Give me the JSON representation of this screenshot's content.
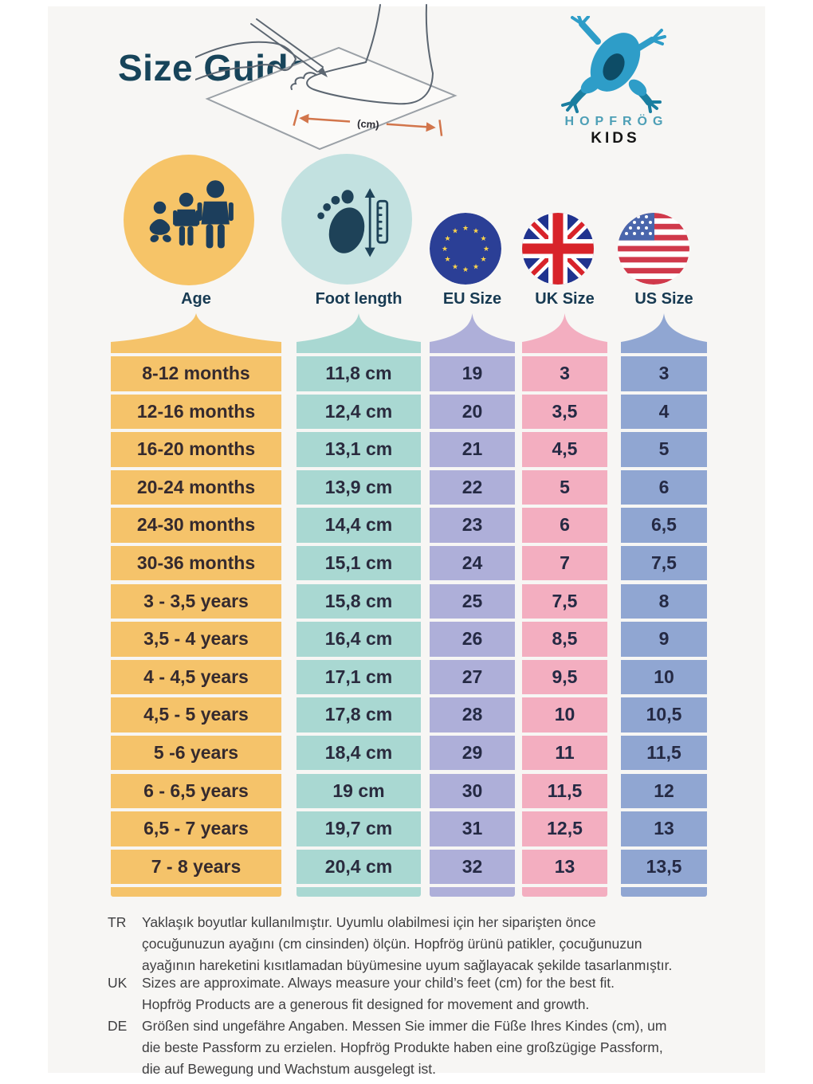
{
  "title": "Size Guide",
  "illustration": {
    "icon": "foot-measure-illustration",
    "unit_label": "(cm)"
  },
  "logo": {
    "icon": "frog-logo-icon",
    "brand": "HOPFRÖG",
    "sub": "KIDS"
  },
  "colors": {
    "card_background": "#f7f6f4",
    "title": "#17445a",
    "age": "#f5c36a",
    "foot_length": "#a9d8d2",
    "eu": "#aeafd9",
    "uk": "#f3aec0",
    "us": "#90a6d2",
    "age_circle": "#f6c468",
    "foot_circle": "#c2e1e0"
  },
  "columns": [
    {
      "key": "age",
      "label": "Age",
      "icon": "family-icon"
    },
    {
      "key": "foot",
      "label": "Foot length",
      "icon": "foot-ruler-icon"
    },
    {
      "key": "eu",
      "label": "EU Size",
      "icon": "eu-flag-icon"
    },
    {
      "key": "uk",
      "label": "UK Size",
      "icon": "uk-flag-icon"
    },
    {
      "key": "us",
      "label": "US Size",
      "icon": "us-flag-icon"
    }
  ],
  "table": {
    "rows": [
      {
        "age": "8-12 months",
        "foot": "11,8 cm",
        "eu": "19",
        "uk": "3",
        "us": "3"
      },
      {
        "age": "12-16 months",
        "foot": "12,4 cm",
        "eu": "20",
        "uk": "3,5",
        "us": "4"
      },
      {
        "age": "16-20 months",
        "foot": "13,1 cm",
        "eu": "21",
        "uk": "4,5",
        "us": "5"
      },
      {
        "age": "20-24 months",
        "foot": "13,9 cm",
        "eu": "22",
        "uk": "5",
        "us": "6"
      },
      {
        "age": "24-30 months",
        "foot": "14,4 cm",
        "eu": "23",
        "uk": "6",
        "us": "6,5"
      },
      {
        "age": "30-36 months",
        "foot": "15,1 cm",
        "eu": "24",
        "uk": "7",
        "us": "7,5"
      },
      {
        "age": "3 - 3,5 years",
        "foot": "15,8 cm",
        "eu": "25",
        "uk": "7,5",
        "us": "8"
      },
      {
        "age": "3,5 - 4 years",
        "foot": "16,4 cm",
        "eu": "26",
        "uk": "8,5",
        "us": "9"
      },
      {
        "age": "4 - 4,5 years",
        "foot": "17,1 cm",
        "eu": "27",
        "uk": "9,5",
        "us": "10"
      },
      {
        "age": "4,5 - 5 years",
        "foot": "17,8 cm",
        "eu": "28",
        "uk": "10",
        "us": "10,5"
      },
      {
        "age": "5 -6 years",
        "foot": "18,4 cm",
        "eu": "29",
        "uk": "11",
        "us": "11,5"
      },
      {
        "age": "6 - 6,5 years",
        "foot": "19 cm",
        "eu": "30",
        "uk": "11,5",
        "us": "12"
      },
      {
        "age": "6,5 - 7 years",
        "foot": "19,7 cm",
        "eu": "31",
        "uk": "12,5",
        "us": "13"
      },
      {
        "age": "7 - 8 years",
        "foot": "20,4 cm",
        "eu": "32",
        "uk": "13",
        "us": "13,5"
      }
    ]
  },
  "footer": {
    "notes": [
      {
        "label": "TR",
        "lines": [
          "Yaklaşık boyutlar kullanılmıştır. Uyumlu olabilmesi için her siparişten önce",
          "çocuğunuzun ayağını (cm cinsinden) ölçün. Hopfrög ürünü patikler, çocuğunuzun",
          "ayağının hareketini kısıtlamadan büyümesine uyum sağlayacak şekilde tasarlanmıştır."
        ]
      },
      {
        "label": "UK",
        "lines": [
          "Sizes are approximate. Always measure your child’s feet (cm) for the best fit.",
          "Hopfrög Products are a generous fit designed for movement and growth."
        ]
      },
      {
        "label": "DE",
        "lines": [
          "Größen sind ungefähre Angaben. Messen Sie immer die Füße Ihres Kindes (cm), um",
          "die beste Passform zu erzielen. Hopfrög Produkte haben eine großzügige Passform,",
          "die auf Bewegung und Wachstum ausgelegt ist."
        ]
      }
    ]
  }
}
